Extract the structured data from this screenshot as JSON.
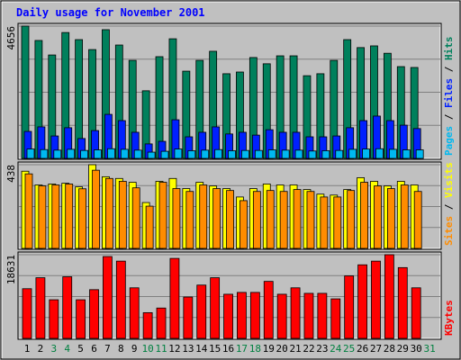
{
  "chart_data": {
    "type": "bar",
    "title": "Daily usage for November 2001",
    "categories": [
      "1",
      "2",
      "3",
      "4",
      "5",
      "6",
      "7",
      "8",
      "9",
      "10",
      "11",
      "12",
      "13",
      "14",
      "15",
      "16",
      "17",
      "18",
      "19",
      "20",
      "21",
      "22",
      "23",
      "24",
      "25",
      "26",
      "27",
      "28",
      "29",
      "30",
      "31"
    ],
    "label_colors": [
      "#000000",
      "#000000",
      "#008040",
      "#008040",
      "#000000",
      "#000000",
      "#000000",
      "#000000",
      "#000000",
      "#008040",
      "#008040",
      "#000000",
      "#000000",
      "#000000",
      "#000000",
      "#000000",
      "#008040",
      "#008040",
      "#000000",
      "#000000",
      "#000000",
      "#000000",
      "#000000",
      "#008040",
      "#008040",
      "#000000",
      "#000000",
      "#000000",
      "#000000",
      "#000000",
      "#008040"
    ],
    "legend_separator": " / ",
    "panels": [
      {
        "ylim": [
          0,
          4656
        ],
        "yticks": [
          4656
        ],
        "series": [
          {
            "name": "Hits",
            "color": "#00805c",
            "values": [
              4656,
              4150,
              3640,
              4430,
              4180,
              3830,
              4530,
              3990,
              3450,
              2380,
              3580,
              4210,
              3070,
              3450,
              3770,
              2980,
              3040,
              3550,
              3330,
              3610,
              3610,
              2910,
              2980,
              3450,
              4180,
              3900,
              3960,
              3700,
              3230,
              3200,
              null
            ]
          },
          {
            "name": "Files",
            "color": "#0020ff",
            "values": [
              950,
              1110,
              790,
              1080,
              700,
              980,
              1550,
              1330,
              920,
              510,
              600,
              1360,
              760,
              920,
              1110,
              860,
              920,
              820,
              1010,
              920,
              920,
              760,
              760,
              790,
              1080,
              1330,
              1490,
              1330,
              1170,
              1050,
              null
            ]
          },
          {
            "name": "Pages",
            "color": "#00b8f0",
            "values": [
              330,
              310,
              290,
              320,
              280,
              300,
              340,
              320,
              290,
              220,
              250,
              330,
              270,
              290,
              310,
              270,
              280,
              280,
              300,
              290,
              290,
              260,
              270,
              280,
              320,
              330,
              340,
              320,
              300,
              300,
              null
            ]
          }
        ]
      },
      {
        "ylim": [
          0,
          438
        ],
        "yticks": [
          438
        ],
        "series": [
          {
            "name": "Visits",
            "color": "#ffff00",
            "values": [
              404,
              332,
              337,
              341,
              322,
              438,
              375,
              366,
              346,
              240,
              351,
              366,
              313,
              346,
              327,
              313,
              269,
              313,
              337,
              332,
              332,
              308,
              284,
              279,
              308,
              370,
              351,
              327,
              351,
              332,
              null
            ]
          },
          {
            "name": "Sites",
            "color": "#ff8c00",
            "values": [
              390,
              327,
              332,
              337,
              312,
              409,
              366,
              351,
              317,
              221,
              346,
              313,
              298,
              332,
              313,
              303,
              250,
              298,
              303,
              298,
              308,
              298,
              269,
              269,
              303,
              346,
              327,
              313,
              332,
              298,
              null
            ]
          }
        ]
      },
      {
        "ylim": [
          0,
          18631
        ],
        "yticks": [
          18631
        ],
        "series": [
          {
            "name": "KBytes",
            "color": "#ff0000",
            "values": [
              11060,
              13510,
              8600,
              13720,
              8600,
              10850,
              18220,
              17200,
              11260,
              5730,
              6760,
              17810,
              9210,
              11870,
              13510,
              9830,
              10240,
              10240,
              12690,
              9830,
              11260,
              10030,
              10030,
              8800,
              13920,
              16380,
              17200,
              18631,
              15760,
              11260,
              null
            ]
          }
        ]
      }
    ]
  }
}
